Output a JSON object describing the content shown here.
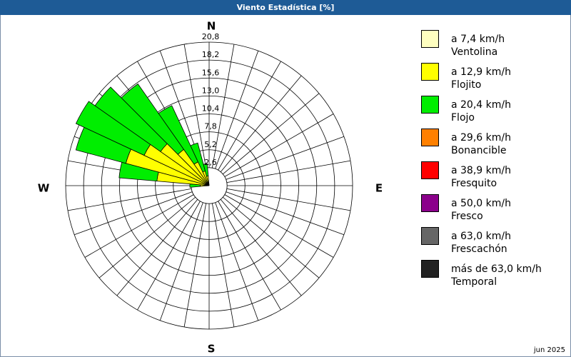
{
  "chart_data": {
    "type": "windrose",
    "title": "Viento Estadística [%]",
    "footer": "jun 2025",
    "compass": [
      "N",
      "E",
      "S",
      "W"
    ],
    "categories": [
      null,
      null,
      null,
      null,
      null,
      null,
      null,
      null,
      null,
      null,
      null,
      null,
      null,
      null,
      null,
      null,
      null,
      null,
      null,
      null,
      null,
      null,
      null,
      null,
      null,
      null,
      null,
      null,
      null,
      null,
      null,
      null,
      null,
      null,
      null,
      null
    ],
    "rlim": [
      0,
      20.8
    ],
    "rticks": [
      {
        "value": 2.6,
        "label": "2,6"
      },
      {
        "value": 5.2,
        "label": "5,2"
      },
      {
        "value": 7.8,
        "label": "7,8"
      },
      {
        "value": 10.4,
        "label": "10,4"
      },
      {
        "value": 13.0,
        "label": "13,0"
      },
      {
        "value": 15.6,
        "label": "15,6"
      },
      {
        "value": 18.2,
        "label": "18,2"
      },
      {
        "value": 20.8,
        "label": "20,8"
      }
    ],
    "series": [
      {
        "name": "a 7,4 km/h",
        "description": "Ventolina",
        "color": "#ffffc0",
        "values": [
          0,
          0,
          0,
          0,
          0,
          0,
          0,
          0,
          0,
          0,
          0,
          0,
          0,
          0,
          0,
          0,
          0,
          0,
          0,
          0,
          0,
          0,
          0,
          0,
          0,
          0,
          0,
          0.3,
          0.5,
          0.5,
          0.5,
          0.4,
          0.4,
          0.3,
          0.2,
          0.2
        ]
      },
      {
        "name": "a 12,9 km/h",
        "description": "Flojito",
        "color": "#ffff00",
        "values": [
          0,
          0,
          0,
          0,
          0,
          0,
          0,
          0,
          0,
          0,
          0,
          0,
          0,
          0,
          0,
          0,
          0,
          0,
          0,
          0,
          0,
          0,
          0,
          0,
          0,
          0,
          0,
          1.0,
          7.1,
          12.0,
          9.9,
          8.2,
          6.0,
          3.5,
          2.0,
          1.2
        ]
      },
      {
        "name": "a 20,4 km/h",
        "description": "Flojo",
        "color": "#00ee00",
        "values": [
          0,
          0,
          0,
          0,
          0,
          0,
          0,
          0,
          0,
          0,
          0,
          0,
          0,
          0,
          0,
          0,
          0,
          0,
          0,
          0,
          0,
          0,
          0,
          0,
          0,
          0,
          0,
          1.5,
          5.5,
          7.5,
          10.9,
          11.6,
          11.6,
          9.0,
          4.2,
          1.8
        ]
      },
      {
        "name": "a 29,6 km/h",
        "description": "Bonancible",
        "color": "#ff8000",
        "values": [
          0,
          0,
          0,
          0,
          0,
          0,
          0,
          0,
          0,
          0,
          0,
          0,
          0,
          0,
          0,
          0,
          0,
          0,
          0,
          0,
          0,
          0,
          0,
          0,
          0,
          0,
          0,
          0,
          0,
          0,
          0,
          0,
          0,
          0,
          0,
          0
        ]
      },
      {
        "name": "a 38,9 km/h",
        "description": "Fresquito",
        "color": "#ff0000",
        "values": [
          0,
          0,
          0,
          0,
          0,
          0,
          0,
          0,
          0,
          0,
          0,
          0,
          0,
          0,
          0,
          0,
          0,
          0,
          0,
          0,
          0,
          0,
          0,
          0,
          0,
          0,
          0,
          0,
          0,
          0,
          0,
          0,
          0,
          0,
          0,
          0
        ]
      },
      {
        "name": "a 50,0 km/h",
        "description": "Fresco",
        "color": "#8b008b",
        "values": [
          0,
          0,
          0,
          0,
          0,
          0,
          0,
          0,
          0,
          0,
          0,
          0,
          0,
          0,
          0,
          0,
          0,
          0,
          0,
          0,
          0,
          0,
          0,
          0,
          0,
          0,
          0,
          0,
          0,
          0,
          0,
          0,
          0,
          0,
          0,
          0
        ]
      },
      {
        "name": "a 63,0 km/h",
        "description": "Frescachón",
        "color": "#666666",
        "values": [
          0,
          0,
          0,
          0,
          0,
          0,
          0,
          0,
          0,
          0,
          0,
          0,
          0,
          0,
          0,
          0,
          0,
          0,
          0,
          0,
          0,
          0,
          0,
          0,
          0,
          0,
          0,
          0,
          0,
          0,
          0,
          0,
          0,
          0,
          0,
          0
        ]
      },
      {
        "name": "más de 63,0 km/h",
        "description": "Temporal",
        "color": "#222222",
        "values": [
          0,
          0,
          0,
          0,
          0,
          0,
          0,
          0,
          0,
          0,
          0,
          0,
          0,
          0,
          0,
          0,
          0,
          0,
          0,
          0,
          0,
          0,
          0,
          0,
          0,
          0,
          0,
          0,
          0,
          0,
          0,
          0,
          0,
          0,
          0,
          0
        ]
      }
    ]
  }
}
